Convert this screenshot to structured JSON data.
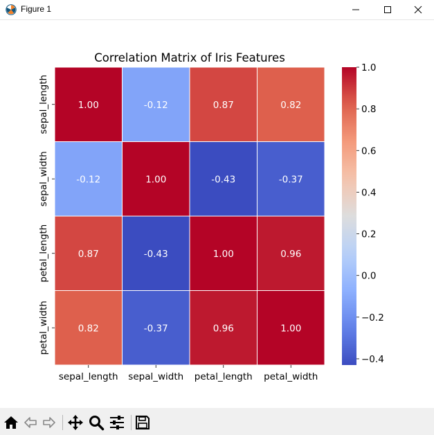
{
  "window": {
    "title": "Figure 1",
    "app_icon": "matplotlib-icon",
    "controls": [
      "minimize-icon",
      "maximize-icon",
      "close-icon"
    ]
  },
  "toolbar": {
    "buttons": [
      "home-icon",
      "back-icon",
      "forward-icon",
      "pan-icon",
      "zoom-icon",
      "configure-subplots-icon",
      "save-icon"
    ]
  },
  "chart_data": {
    "type": "heatmap",
    "title": "Correlation Matrix of Iris Features",
    "x_categories": [
      "sepal_length",
      "sepal_width",
      "petal_length",
      "petal_width"
    ],
    "y_categories": [
      "sepal_length",
      "sepal_width",
      "petal_length",
      "petal_width"
    ],
    "values": [
      [
        1.0,
        -0.12,
        0.87,
        0.82
      ],
      [
        -0.12,
        1.0,
        -0.43,
        -0.37
      ],
      [
        0.87,
        -0.43,
        1.0,
        0.96
      ],
      [
        0.82,
        -0.37,
        0.96,
        1.0
      ]
    ],
    "cell_labels": [
      [
        "1.00",
        "-0.12",
        "0.87",
        "0.82"
      ],
      [
        "-0.12",
        "1.00",
        "-0.43",
        "-0.37"
      ],
      [
        "0.87",
        "-0.43",
        "1.00",
        "0.96"
      ],
      [
        "0.82",
        "-0.37",
        "0.96",
        "1.00"
      ]
    ],
    "colormap": "coolwarm",
    "annotation_color": "#ffffff",
    "cell_border_color": "#ffffff",
    "colorbar": {
      "range": [
        -0.43,
        1.0
      ],
      "ticks": [
        1.0,
        0.8,
        0.6,
        0.4,
        0.2,
        0.0,
        -0.2,
        -0.4
      ],
      "tick_labels": [
        "1.0",
        "0.8",
        "0.6",
        "0.4",
        "0.2",
        "0.0",
        "−0.2",
        "−0.4"
      ]
    }
  }
}
